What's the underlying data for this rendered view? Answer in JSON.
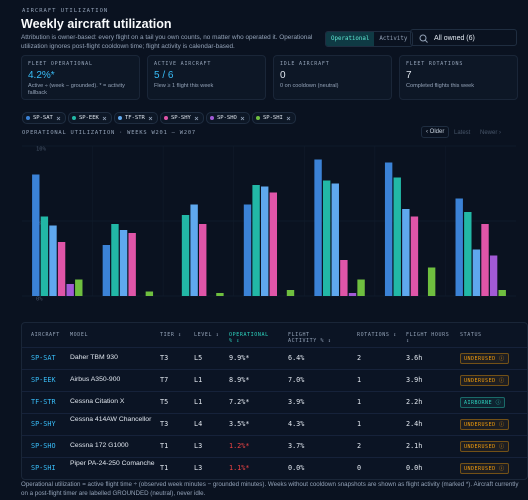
{
  "header": {
    "eyebrow": "AIRCRAFT UTILIZATION",
    "title": "Weekly aircraft utilization",
    "description": "Attribution is owner-based: every flight on a tail you own counts, no matter who operated it. Operational utilization ignores post-flight cooldown time; flight activity is calendar-based."
  },
  "toggle": [
    "Operational",
    "Activity"
  ],
  "select": "All owned (6)",
  "cards": [
    {
      "label": "FLEET OPERATIONAL",
      "value": "4.2%*",
      "sub": "Active ÷ (week − grounded). * = activity fallback",
      "color": "#38bdf8"
    },
    {
      "label": "ACTIVE AIRCRAFT",
      "value": "5 / 6",
      "sub": "Flew ≥ 1 flight this week",
      "color": "#38bdf8"
    },
    {
      "label": "IDLE AIRCRAFT",
      "value": "0",
      "sub": "0 on cooldown (neutral)",
      "color": "#e2e8f0"
    },
    {
      "label": "FLEET ROTATIONS",
      "value": "7",
      "sub": "Completed flights this week",
      "color": "#e2e8f0"
    }
  ],
  "chart_header": "OPERATIONAL UTILIZATION · WEEKS W201 – W207",
  "pager": [
    "‹ Older",
    "Latest",
    "Newer ›"
  ],
  "chart_data": {
    "type": "bar",
    "categories": [
      null,
      null,
      null,
      null,
      null,
      null,
      null
    ],
    "series": [
      {
        "name": "SP-SAT",
        "color": "#3b82d6",
        "values": [
          8.1,
          3.4,
          0,
          6.1,
          9.1,
          8.9,
          6.5
        ]
      },
      {
        "name": "SP-EEK",
        "color": "#22b8a6",
        "values": [
          5.3,
          4.8,
          5.4,
          7.4,
          7.7,
          7.9,
          5.6
        ]
      },
      {
        "name": "TF-STR",
        "color": "#5fa8ee",
        "values": [
          4.7,
          4.4,
          6.1,
          7.3,
          7.5,
          5.8,
          3.1
        ]
      },
      {
        "name": "SP-SHY",
        "color": "#e055a8",
        "values": [
          3.6,
          4.2,
          4.8,
          6.9,
          2.4,
          5.3,
          4.8
        ]
      },
      {
        "name": "SP-SHO",
        "color": "#a25ad6",
        "values": [
          0.8,
          0,
          0,
          0,
          0.2,
          0,
          2.7
        ]
      },
      {
        "name": "SP-SHI",
        "color": "#6fbf3f",
        "values": [
          1.1,
          0.3,
          0.2,
          0.4,
          1.1,
          1.9,
          0.4
        ]
      }
    ],
    "ylim": [
      0,
      10
    ],
    "yticks": [
      {
        "value": 0,
        "label": "0%"
      },
      {
        "value": 5,
        "label": "5%"
      },
      {
        "value": 10,
        "label": "10%"
      }
    ],
    "grid": true
  },
  "table": {
    "columns": [
      "AIRCRAFT",
      "MODEL",
      "TIER ↕",
      "LEVEL ↕",
      "OPERATIONAL % ↕",
      "FLIGHT ACTIVITY % ↕",
      "ROTATIONS ↕",
      "FLIGHT HOURS ↕",
      "STATUS"
    ],
    "rows": [
      [
        "SP-SAT",
        "Daher TBM 930",
        "T3",
        "L5",
        "9.9%*",
        "6.4%",
        "2",
        "3.6h",
        "UNDERUSED ⓘ"
      ],
      [
        "SP-EEK",
        "Airbus A350-900",
        "T7",
        "L1",
        "8.9%*",
        "7.0%",
        "1",
        "3.9h",
        "UNDERUSED ⓘ"
      ],
      [
        "TF-STR",
        "Cessna Citation X",
        "T5",
        "L1",
        "7.2%*",
        "3.9%",
        "1",
        "2.2h",
        "AIRBORNE ⓘ"
      ],
      [
        "SP-SHY",
        "Cessna 414AW Chancellor",
        "T3",
        "L4",
        "3.5%*",
        "4.3%",
        "1",
        "2.4h",
        "UNDERUSED ⓘ"
      ],
      [
        "SP-SHO",
        "Cessna 172 G1000",
        "T1",
        "L3",
        "1.2%*",
        "3.7%",
        "2",
        "2.1h",
        "UNDERUSED ⓘ"
      ],
      [
        "SP-SHI",
        "Piper PA-24-250 Comanche",
        "T1",
        "L3",
        "1.1%*",
        "0.0%",
        "0",
        "0.0h",
        "UNDERUSED ⓘ"
      ]
    ],
    "op_colors": [
      "#e2e8f0",
      "#e2e8f0",
      "#e2e8f0",
      "#e2e8f0",
      "#ef4444",
      "#ef4444"
    ],
    "status_colors": [
      "#f59e0b",
      "#f59e0b",
      "#2dd4bf",
      "#f59e0b",
      "#f59e0b",
      "#f59e0b"
    ]
  },
  "footer": "Operational utilization = active flight time ÷ (observed week minutes − grounded minutes). Weeks without cooldown snapshots are shown as flight activity (marked *). Aircraft currently on a post-flight timer are labelled GROUNDED (neutral), never idle."
}
